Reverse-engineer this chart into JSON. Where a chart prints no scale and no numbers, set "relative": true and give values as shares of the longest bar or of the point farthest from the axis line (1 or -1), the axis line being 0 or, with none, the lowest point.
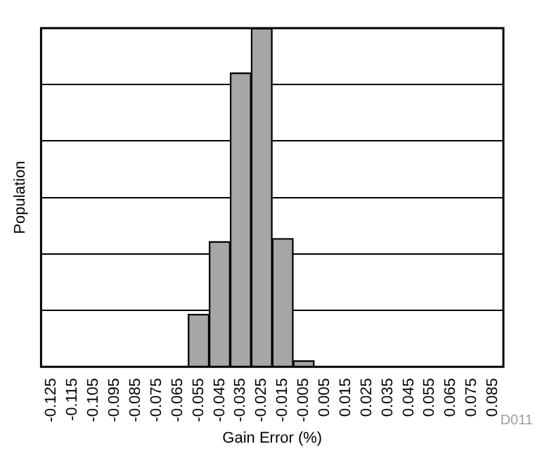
{
  "chart_data": {
    "type": "bar",
    "xlabel": "Gain Error (%)",
    "ylabel": "Population",
    "relative": true,
    "x": [
      -0.055,
      -0.045,
      -0.035,
      -0.025,
      -0.015,
      -0.005
    ],
    "values": [
      0.155,
      0.37,
      0.868,
      1,
      0.379,
      0.018
    ],
    "color": "#a6a6a6",
    "xlim": [
      -0.13,
      0.09
    ],
    "xticks": [
      -0.125,
      -0.115,
      -0.105,
      -0.095,
      -0.085,
      -0.075,
      -0.065,
      -0.055,
      -0.045,
      -0.035,
      -0.025,
      -0.015,
      -0.005,
      0.005,
      0.015,
      0.025,
      0.035,
      0.045,
      0.055,
      0.065,
      0.075,
      0.085
    ],
    "grid": "y",
    "annotations": [
      "D011"
    ]
  }
}
